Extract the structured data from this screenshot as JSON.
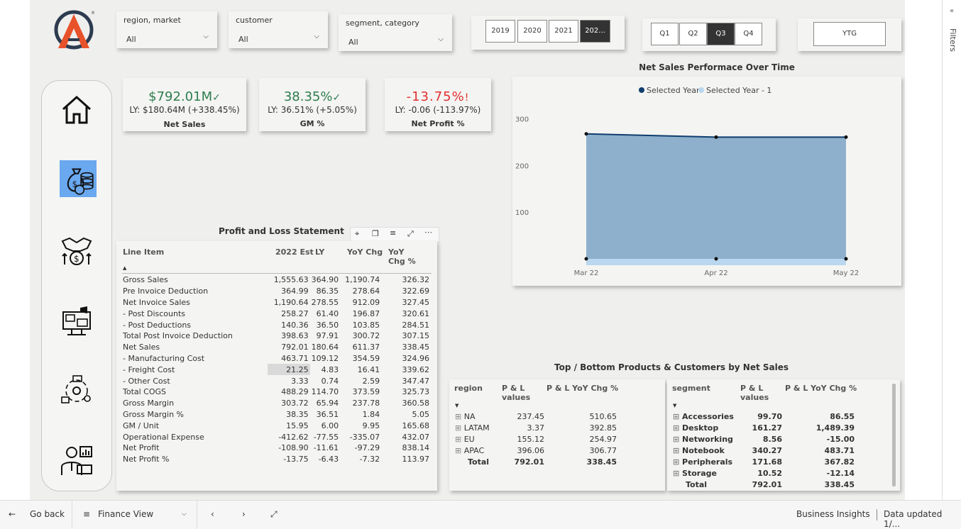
{
  "filters": {
    "region_market": {
      "label": "region, market",
      "value": "All"
    },
    "customer": {
      "label": "customer",
      "value": "All"
    },
    "segment_category": {
      "label": "segment, category",
      "value": "All"
    }
  },
  "years": [
    "2019",
    "2020",
    "2021",
    "202..."
  ],
  "quarters": [
    "Q1",
    "Q2",
    "Q3",
    "Q4"
  ],
  "ytg": "YTG",
  "kpis": [
    {
      "value": "$792.01M",
      "mark": "✓",
      "sub": "LY: $180.64M (+338.45%)",
      "title": "Net Sales",
      "color": "#2e7d4f"
    },
    {
      "value": "38.35%",
      "mark": "✓",
      "sub": "LY: 36.51% (+5.05%)",
      "title": "GM %",
      "color": "#2e7d4f"
    },
    {
      "value": "-13.75%",
      "mark": "!",
      "sub": "LY: -0.06 (-113.97%)",
      "title": "Net Profit %",
      "color": "#e03030"
    }
  ],
  "pl": {
    "title": "Profit and Loss Statement",
    "headers": [
      "Line Item",
      "2022 Est",
      "LY",
      "YoY Chg",
      "YoY Chg %"
    ],
    "rows": [
      [
        "Gross Sales",
        "1,555.63",
        "364.90",
        "1,190.74",
        "326.32"
      ],
      [
        "Pre Invoice Deduction",
        "364.99",
        "86.35",
        "278.64",
        "322.69"
      ],
      [
        "Net Invoice Sales",
        "1,190.64",
        "278.55",
        "912.09",
        "327.45"
      ],
      [
        "- Post Discounts",
        "258.27",
        "61.40",
        "196.87",
        "320.61"
      ],
      [
        "- Post Deductions",
        "140.36",
        "36.50",
        "103.85",
        "284.51"
      ],
      [
        "Total Post Invoice Deduction",
        "398.63",
        "97.91",
        "300.72",
        "307.15"
      ],
      [
        "Net Sales",
        "792.01",
        "180.64",
        "611.37",
        "338.45"
      ],
      [
        "- Manufacturing Cost",
        "463.71",
        "109.12",
        "354.59",
        "324.96"
      ],
      [
        "- Freight Cost",
        "21.25",
        "4.83",
        "16.41",
        "339.62"
      ],
      [
        "- Other Cost",
        "3.33",
        "0.74",
        "2.59",
        "347.47"
      ],
      [
        "Total COGS",
        "488.29",
        "114.70",
        "373.59",
        "325.73"
      ],
      [
        "Gross Margin",
        "303.72",
        "65.94",
        "237.78",
        "360.58"
      ],
      [
        "Gross Margin %",
        "38.35",
        "36.51",
        "1.84",
        "5.05"
      ],
      [
        "GM / Unit",
        "15.95",
        "6.00",
        "9.95",
        "165.68"
      ],
      [
        "Operational Expense",
        "-412.62",
        "-77.55",
        "-335.07",
        "432.07"
      ],
      [
        "Net Profit",
        "-108.90",
        "-11.61",
        "-97.29",
        "838.14"
      ],
      [
        "Net Profit %",
        "-13.75",
        "-6.43",
        "-7.32",
        "113.97"
      ]
    ]
  },
  "chart_data": {
    "type": "area",
    "title": "Net Sales Performace Over Time",
    "categories": [
      "Mar 22",
      "Apr 22",
      "May 22"
    ],
    "series": [
      {
        "name": "Selected Year",
        "values": [
          268,
          261,
          261
        ],
        "color": "#0f3e6e"
      },
      {
        "name": "Selected Year - 1",
        "values": [
          0,
          0,
          0
        ],
        "color": "#b9d7ee"
      }
    ],
    "yticks": [
      "100",
      "200",
      "300"
    ],
    "ylim": [
      0,
      330
    ]
  },
  "topbottom": {
    "title": "Top / Bottom Products & Customers by Net Sales",
    "region_headers": [
      "region",
      "P & L values",
      "P & L YoY Chg %"
    ],
    "region_rows": [
      [
        "NA",
        "237.45",
        "510.65"
      ],
      [
        "LATAM",
        "3.37",
        "392.85"
      ],
      [
        "EU",
        "155.12",
        "254.97"
      ],
      [
        "APAC",
        "396.06",
        "306.77"
      ]
    ],
    "region_total": [
      "Total",
      "792.01",
      "338.45"
    ],
    "segment_headers": [
      "segment",
      "P & L values",
      "P & L YoY Chg %"
    ],
    "segment_rows": [
      [
        "Accessories",
        "99.70",
        "86.55"
      ],
      [
        "Desktop",
        "161.27",
        "1,489.39"
      ],
      [
        "Networking",
        "8.56",
        "-15.00"
      ],
      [
        "Notebook",
        "340.27",
        "483.71"
      ],
      [
        "Peripherals",
        "171.68",
        "367.82"
      ],
      [
        "Storage",
        "10.52",
        "-12.14"
      ]
    ],
    "segment_total": [
      "Total",
      "792.01",
      "338.45"
    ]
  },
  "side": {
    "filters": "Filters"
  },
  "bottom": {
    "go_back": "Go back",
    "page": "Finance View",
    "brand": "Business Insights",
    "updated": "Data updated 1/..."
  }
}
